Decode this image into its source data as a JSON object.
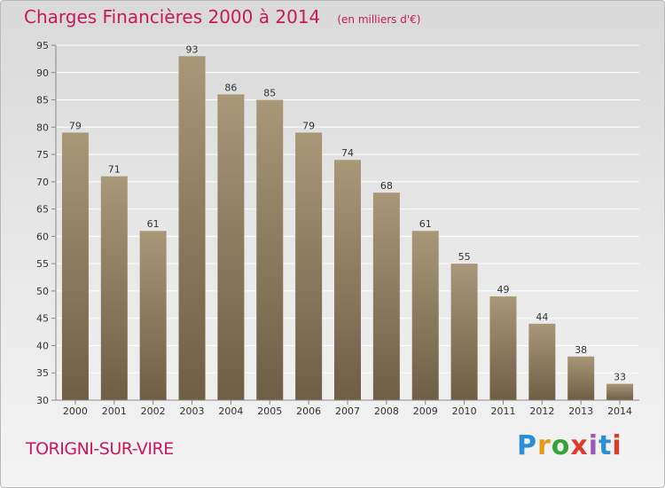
{
  "header": {
    "title": "Charges Financières 2000 à 2014",
    "subtitle": "(en milliers d'€)"
  },
  "footer": {
    "city": "TORIGNI-SUR-VIRE",
    "logo": "Proxiti"
  },
  "chart_data": {
    "type": "bar",
    "title": "Charges Financières 2000 à 2014",
    "subtitle": "(en milliers d'€)",
    "categories": [
      "2000",
      "2001",
      "2002",
      "2003",
      "2004",
      "2005",
      "2006",
      "2007",
      "2008",
      "2009",
      "2010",
      "2011",
      "2012",
      "2013",
      "2014"
    ],
    "values": [
      79,
      71,
      61,
      93,
      86,
      85,
      79,
      74,
      68,
      61,
      55,
      49,
      44,
      38,
      33
    ],
    "ylim": [
      30,
      95
    ],
    "yticks": [
      30,
      35,
      40,
      45,
      50,
      55,
      60,
      65,
      70,
      75,
      80,
      85,
      90,
      95
    ],
    "grid": true,
    "colors": {
      "bar_top": "#a89878",
      "bar_bottom": "#6e5e44",
      "grid": "#ffffff",
      "axis": "#888888"
    }
  }
}
